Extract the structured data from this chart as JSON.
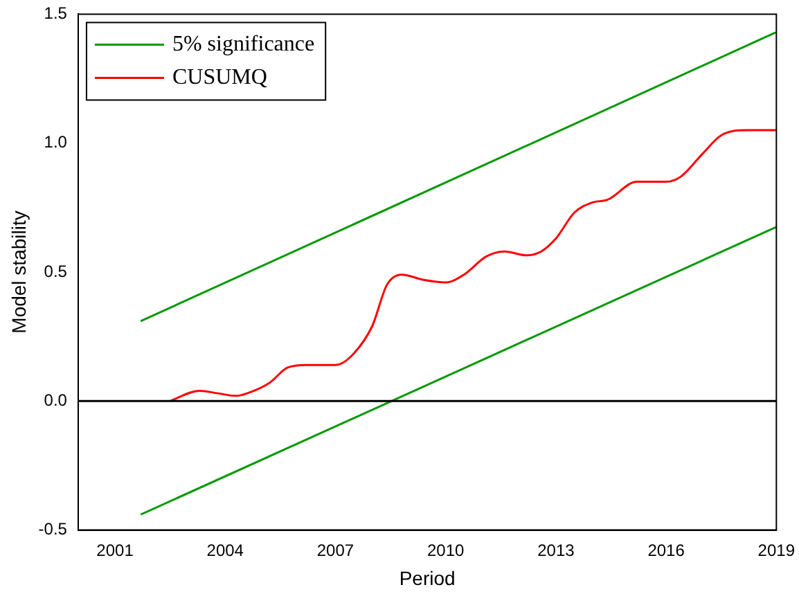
{
  "chart_data": {
    "type": "line",
    "xlabel": "Period",
    "ylabel": "Model stability",
    "xlim": [
      2000,
      2019
    ],
    "ylim": [
      -0.5,
      1.5
    ],
    "xticks": [
      2001,
      2004,
      2007,
      2010,
      2013,
      2016,
      2019
    ],
    "yticks": [
      {
        "value": -0.5,
        "label": "-0.5"
      },
      {
        "value": 0,
        "label": "0.0"
      },
      {
        "value": 0.5,
        "label": "0.5"
      },
      {
        "value": 1,
        "label": "1.0"
      },
      {
        "value": 1.5,
        "label": "1.5"
      }
    ],
    "grid": false,
    "legend": "top left",
    "marker": "none",
    "line_style": "solid",
    "ref_lines": [
      {
        "axis": "y",
        "value": 0,
        "color": "#000000"
      }
    ],
    "series": [
      {
        "name": "5% significance",
        "color": "#009900",
        "x": [
          2001.7,
          2019
        ],
        "values": [
          0.31,
          1.43
        ]
      },
      {
        "name": "CUSUMQ",
        "color": "#ff0000",
        "x": [
          2002.5,
          2003.3,
          2003.8,
          2004.3,
          2004.6,
          2005.2,
          2005.7,
          2006.2,
          2007,
          2007.4,
          2008,
          2008.4,
          2008.8,
          2009.4,
          2010,
          2010.5,
          2011.1,
          2011.6,
          2012.2,
          2012.6,
          2013,
          2013.5,
          2014,
          2014.4,
          2015.2,
          2015.5,
          2016,
          2016.4,
          2017,
          2017.5,
          2018.2,
          2019
        ],
        "values": [
          0,
          0.04,
          0.03,
          0.02,
          0.03,
          0.07,
          0.13,
          0.14,
          0.14,
          0.17,
          0.29,
          0.45,
          0.49,
          0.47,
          0.46,
          0.49,
          0.56,
          0.58,
          0.565,
          0.58,
          0.63,
          0.73,
          0.77,
          0.78,
          0.85,
          0.85,
          0.85,
          0.87,
          0.96,
          1.03,
          1.05,
          1.05
        ]
      },
      {
        "color": "#009900",
        "x": [
          2001.7,
          2019
        ],
        "values": [
          -0.44,
          0.675
        ]
      }
    ]
  }
}
